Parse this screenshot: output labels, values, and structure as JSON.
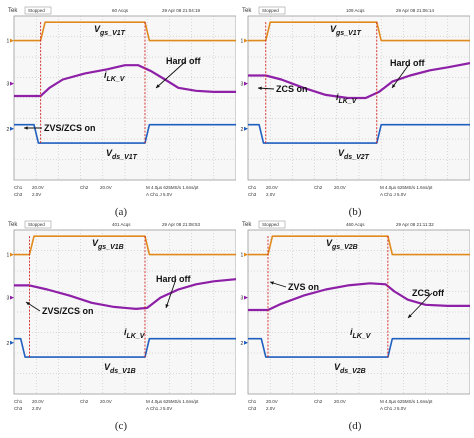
{
  "panels": [
    {
      "header": {
        "brand": "Tek",
        "status": "Stopped",
        "acq": "60 Acqs",
        "date": "29 Apr 08 21:04:19"
      },
      "footer": {
        "ch1": "Ch1",
        "ch1_scale": "20.0V",
        "ch2": "Ch2",
        "ch2_scale": "20.0V",
        "ch3": "Ch3",
        "ch3_scale": "2.0V",
        "ch4": "",
        "ch4_scale": "",
        "time": "M 4.0µs 625MS/s 1.6ns/pt",
        "trig": "A Ch1 J 5.0V"
      },
      "caption": "(a)",
      "labels": {
        "vgs": {
          "main": "V",
          "sub": "gs_V1T"
        },
        "ilk": {
          "main": "i",
          "sub": "LK_V"
        },
        "vds": {
          "main": "V",
          "sub": "ds_V1T"
        },
        "ann1": "ZVS/ZCS on",
        "ann2": "Hard off"
      },
      "chart_data": {
        "type": "line",
        "x_divisions": [
          0,
          10
        ],
        "series": [
          {
            "name": "V",
            "color": "#e08a1e",
            "x": [
              0,
              1.2,
              1.4,
              5.9,
              6.1,
              10
            ],
            "y": [
              6.8,
              6.8,
              7.7,
              7.7,
              6.8,
              6.8
            ]
          },
          {
            "name": "i",
            "color": "#8e1fa7",
            "x": [
              0,
              1.2,
              1.6,
              2.2,
              3.2,
              4.2,
              5.0,
              5.6,
              6.2,
              6.8,
              7.4,
              8.2,
              9.0,
              10
            ],
            "y": [
              4.1,
              4.1,
              4.5,
              4.9,
              5.2,
              5.4,
              5.6,
              5.6,
              5.3,
              4.9,
              4.5,
              4.35,
              4.3,
              4.3
            ]
          },
          {
            "name": "V",
            "color": "#1f5fbf",
            "x": [
              0,
              0.9,
              1.1,
              5.9,
              6.1,
              10
            ],
            "y": [
              2.7,
              2.7,
              1.8,
              1.8,
              2.7,
              2.7
            ]
          }
        ],
        "level_markers": [
          "1→",
          "3→",
          "2→"
        ]
      }
    },
    {
      "header": {
        "brand": "Tek",
        "status": "Stopped",
        "acq": "109 Acqs",
        "date": "29 Apr 08 21:06:14"
      },
      "footer": {
        "ch1": "Ch1",
        "ch1_scale": "20.0V",
        "ch2": "Ch2",
        "ch2_scale": "20.0V",
        "ch3": "Ch3",
        "ch3_scale": "2.0V",
        "ch4": "",
        "ch4_scale": "",
        "time": "M 4.0µs 625MS/s 1.6ns/pt",
        "trig": "A Ch1 J 5.0V"
      },
      "caption": "(b)",
      "labels": {
        "vgs": {
          "main": "V",
          "sub": "gs_V1T"
        },
        "ilk": {
          "main": "i",
          "sub": "LK_V"
        },
        "vds": {
          "main": "V",
          "sub": "ds_V2T"
        },
        "ann1": "ZCS on",
        "ann2": "Hard off"
      },
      "chart_data": {
        "type": "line",
        "x_divisions": [
          0,
          10
        ],
        "series": [
          {
            "name": "V",
            "color": "#e08a1e",
            "x": [
              0,
              0.8,
              1.0,
              5.8,
              6.0,
              10
            ],
            "y": [
              6.8,
              6.8,
              7.7,
              7.7,
              6.8,
              6.8
            ]
          },
          {
            "name": "i",
            "color": "#8e1fa7",
            "x": [
              0,
              0.8,
              1.5,
              2.5,
              3.5,
              4.5,
              5.3,
              5.9,
              6.5,
              7.3,
              8.2,
              9.0,
              10
            ],
            "y": [
              5.1,
              5.1,
              4.9,
              4.5,
              4.15,
              4.0,
              4.0,
              4.3,
              4.8,
              5.1,
              5.35,
              5.5,
              5.7
            ]
          },
          {
            "name": "V",
            "color": "#1f5fbf",
            "x": [
              0,
              0.5,
              0.7,
              5.8,
              6.0,
              10
            ],
            "y": [
              2.7,
              2.7,
              1.8,
              1.8,
              2.7,
              2.7
            ]
          }
        ],
        "level_markers": [
          "1→",
          "3→",
          "2→"
        ]
      }
    },
    {
      "header": {
        "brand": "Tek",
        "status": "Stopped",
        "acq": "401 Acqs",
        "date": "29 Apr 08 21:08:53"
      },
      "footer": {
        "ch1": "Ch1",
        "ch1_scale": "20.0V",
        "ch2": "Ch2",
        "ch2_scale": "20.0V",
        "ch3": "Ch3",
        "ch3_scale": "2.0V",
        "ch4": "",
        "ch4_scale": "",
        "time": "M 4.0µs 625MS/s 1.6ns/pt",
        "trig": "A Ch1 J 5.0V"
      },
      "caption": "(c)",
      "labels": {
        "vgs": {
          "main": "V",
          "sub": "gs_V1B"
        },
        "ilk": {
          "main": "i",
          "sub": "LK_V"
        },
        "vds": {
          "main": "V",
          "sub": "ds_V1B"
        },
        "ann1": "ZVS/ZCS on",
        "ann2": "Hard off"
      },
      "chart_data": {
        "type": "line",
        "x_divisions": [
          0,
          10
        ],
        "series": [
          {
            "name": "V",
            "color": "#e08a1e",
            "x": [
              0,
              0.7,
              0.9,
              5.9,
              6.1,
              10
            ],
            "y": [
              6.8,
              6.8,
              7.7,
              7.7,
              6.8,
              6.8
            ]
          },
          {
            "name": "i",
            "color": "#8e1fa7",
            "x": [
              0,
              0.7,
              1.5,
              2.5,
              3.5,
              4.5,
              5.5,
              6.0,
              6.6,
              7.4,
              8.2,
              9.0,
              10
            ],
            "y": [
              5.3,
              5.3,
              5.1,
              4.8,
              4.45,
              4.25,
              4.15,
              4.2,
              4.7,
              5.1,
              5.35,
              5.5,
              5.6
            ]
          },
          {
            "name": "V",
            "color": "#1f5fbf",
            "x": [
              0,
              0.3,
              0.5,
              5.9,
              6.1,
              10
            ],
            "y": [
              2.7,
              2.7,
              1.8,
              1.8,
              2.7,
              2.7
            ]
          }
        ],
        "level_markers": [
          "1→",
          "3→",
          "2→"
        ]
      }
    },
    {
      "header": {
        "brand": "Tek",
        "status": "Stopped",
        "acq": "460 Acqs",
        "date": "29 Apr 08 21:11:32"
      },
      "footer": {
        "ch1": "Ch1",
        "ch1_scale": "20.0V",
        "ch2": "Ch2",
        "ch2_scale": "20.0V",
        "ch3": "Ch3",
        "ch3_scale": "2.0V",
        "ch4": "",
        "ch4_scale": "",
        "time": "M 4.0µs 625MS/s 1.6ns/pt",
        "trig": "A Ch1 J 5.0V"
      },
      "caption": "(d)",
      "labels": {
        "vgs": {
          "main": "V",
          "sub": "gs_V2B"
        },
        "ilk": {
          "main": "i",
          "sub": "LK_V"
        },
        "vds": {
          "main": "V",
          "sub": "ds_V2B"
        },
        "ann1": "ZVS on",
        "ann2": "ZCS off"
      },
      "chart_data": {
        "type": "line",
        "x_divisions": [
          0,
          10
        ],
        "series": [
          {
            "name": "V",
            "color": "#e08a1e",
            "x": [
              0,
              0.9,
              1.1,
              6.3,
              6.5,
              10
            ],
            "y": [
              6.8,
              6.8,
              7.7,
              7.7,
              6.8,
              6.8
            ]
          },
          {
            "name": "i",
            "color": "#8e1fa7",
            "x": [
              0,
              0.9,
              1.5,
              2.5,
              3.5,
              4.5,
              5.5,
              6.2,
              6.6,
              7.2,
              8.0,
              9.0,
              10
            ],
            "y": [
              4.1,
              4.1,
              4.4,
              4.8,
              5.1,
              5.3,
              5.4,
              5.35,
              5.0,
              4.6,
              4.35,
              4.3,
              4.3
            ]
          },
          {
            "name": "V",
            "color": "#1f5fbf",
            "x": [
              0,
              0.6,
              0.8,
              6.3,
              6.5,
              10
            ],
            "y": [
              2.7,
              2.7,
              1.8,
              1.8,
              2.7,
              2.7
            ]
          }
        ],
        "level_markers": [
          "1→",
          "3→",
          "2→"
        ]
      }
    }
  ]
}
